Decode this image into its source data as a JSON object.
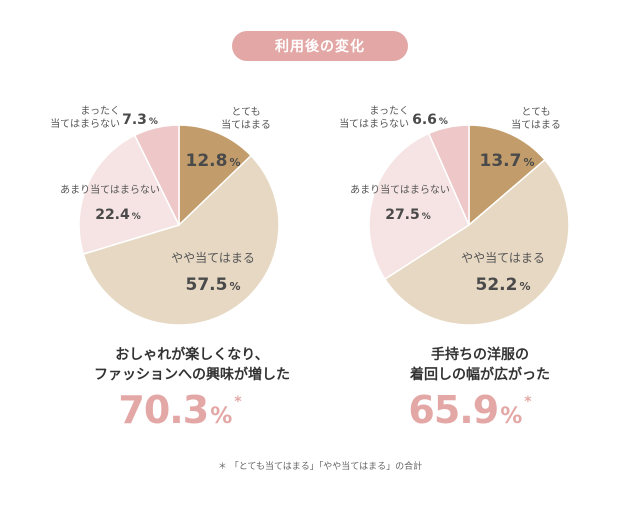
{
  "header": {
    "title": "利用後の変化"
  },
  "chart_data": [
    {
      "type": "pie",
      "slices": [
        {
          "label": "とても当てはまる",
          "label_lines": [
            "とても",
            "当てはまる"
          ],
          "value": 12.8,
          "color": "#c29d6b"
        },
        {
          "label": "やや当てはまる",
          "label_lines": [
            "やや当てはまる"
          ],
          "value": 57.5,
          "color": "#e6d8c3"
        },
        {
          "label": "あまり当てはまらない",
          "label_lines": [
            "あまり当てはまらない"
          ],
          "value": 22.4,
          "color": "#f6e4e4"
        },
        {
          "label": "まったく当てはまらない",
          "label_lines": [
            "まったく",
            "当てはまらない"
          ],
          "value": 7.3,
          "color": "#eec7c8"
        }
      ],
      "unit": "%",
      "caption_lines": [
        "おしゃれが楽しくなり、",
        "ファッションへの興味が増した"
      ],
      "total": "70.3",
      "total_unit": "%",
      "total_mark": "*"
    },
    {
      "type": "pie",
      "slices": [
        {
          "label": "とても当てはまる",
          "label_lines": [
            "とても",
            "当てはまる"
          ],
          "value": 13.7,
          "color": "#c29d6b"
        },
        {
          "label": "やや当てはまる",
          "label_lines": [
            "やや当てはまる"
          ],
          "value": 52.2,
          "color": "#e6d8c3"
        },
        {
          "label": "あまり当てはまらない",
          "label_lines": [
            "あまり当てはまらない"
          ],
          "value": 27.5,
          "color": "#f6e4e4"
        },
        {
          "label": "まったく当てはまらない",
          "label_lines": [
            "まったく",
            "当てはまらない"
          ],
          "value": 6.6,
          "color": "#eec7c8"
        }
      ],
      "unit": "%",
      "caption_lines": [
        "手持ちの洋服の",
        "着回しの幅が広がった"
      ],
      "total": "65.9",
      "total_unit": "%",
      "total_mark": "*"
    }
  ],
  "footnote": "＊ 「とても当てはまる」「やや当てはまる」の合計"
}
